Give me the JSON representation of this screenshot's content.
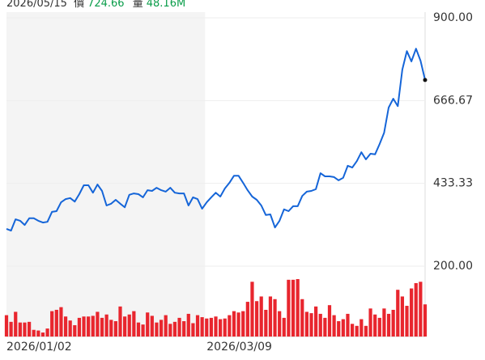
{
  "header": {
    "date": "2026/05/15",
    "price_label": "價",
    "price": "724.66",
    "volume_label": "量",
    "volume": "48.16M"
  },
  "chart_data": {
    "type": "line",
    "categories": [
      "2026/01/02",
      null,
      null,
      null,
      null,
      null,
      null,
      null,
      null,
      null,
      null,
      null,
      null,
      null,
      null,
      null,
      null,
      null,
      null,
      null,
      null,
      null,
      null,
      null,
      null,
      null,
      null,
      null,
      null,
      null,
      null,
      null,
      null,
      null,
      null,
      null,
      null,
      null,
      null,
      null,
      null,
      null,
      null,
      null,
      "2026/03/09",
      null,
      null,
      null,
      null,
      null,
      null,
      null,
      null,
      null,
      null,
      null,
      null,
      null,
      null,
      null,
      null,
      null,
      null,
      null,
      null,
      null,
      null,
      null,
      null,
      null,
      null,
      null,
      null,
      null,
      null,
      null,
      null,
      null,
      null,
      null,
      null,
      null,
      null,
      null,
      null,
      null,
      null,
      null,
      null,
      null,
      null,
      null,
      null
    ],
    "series": [
      {
        "color": "#1565d8",
        "values": [
          305,
          300,
          332,
          328,
          316,
          335,
          335,
          328,
          323,
          325,
          353,
          355,
          380,
          389,
          392,
          382,
          403,
          428,
          428,
          407,
          430,
          412,
          371,
          376,
          387,
          376,
          366,
          401,
          405,
          403,
          394,
          414,
          412,
          421,
          414,
          410,
          421,
          407,
          405,
          405,
          371,
          394,
          389,
          362,
          380,
          394,
          407,
          396,
          419,
          435,
          455,
          455,
          435,
          414,
          396,
          387,
          371,
          344,
          346,
          309,
          328,
          360,
          355,
          369,
          369,
          398,
          410,
          412,
          417,
          462,
          453,
          453,
          451,
          442,
          449,
          483,
          478,
          496,
          521,
          501,
          517,
          515,
          544,
          576,
          647,
          672,
          651,
          754,
          806,
          777,
          813,
          779,
          724.66
        ]
      },
      {
        "type": "bar",
        "color": "#e8262e",
        "values": [
          32,
          22,
          37,
          21,
          21,
          22,
          10,
          9,
          6,
          12,
          38,
          40,
          44,
          30,
          24,
          17,
          28,
          30,
          30,
          31,
          37,
          28,
          33,
          25,
          23,
          45,
          30,
          33,
          38,
          21,
          18,
          36,
          31,
          21,
          25,
          32,
          19,
          22,
          28,
          23,
          34,
          20,
          32,
          29,
          27,
          28,
          30,
          26,
          27,
          32,
          38,
          36,
          38,
          52,
          82,
          53,
          60,
          40,
          60,
          56,
          38,
          28,
          85,
          85,
          86,
          56,
          37,
          35,
          45,
          34,
          28,
          47,
          32,
          23,
          26,
          34,
          19,
          16,
          26,
          16,
          42,
          33,
          28,
          42,
          34,
          40,
          70,
          60,
          46,
          72,
          80,
          82,
          48.16
        ]
      }
    ],
    "ylim": [
      200,
      900
    ],
    "yticks": [
      {
        "value": 900,
        "label": "900.00"
      },
      666.67,
      433.33,
      {
        "value": 200,
        "label": "200.00"
      }
    ],
    "grid": true
  }
}
